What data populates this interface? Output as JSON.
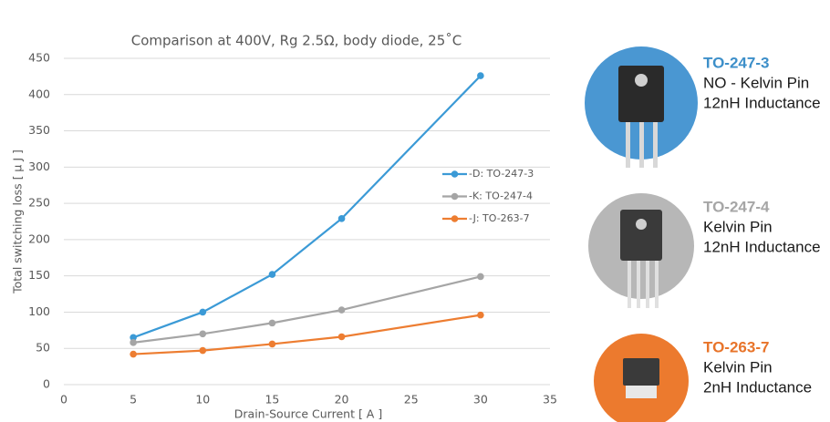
{
  "chart_data": {
    "type": "line",
    "title": "Comparison at 400V, Rg 2.5Ω, body diode, 25˚C",
    "x_label": "Drain-Source Current [ A ]",
    "y_label": "Total switching loss [ μ J ]",
    "x": [
      5,
      10,
      15,
      20,
      30
    ],
    "series": [
      {
        "name": "-D: TO-247-3",
        "color": "#3b9ad6",
        "values": [
          65,
          100,
          152,
          229,
          426
        ]
      },
      {
        "name": "-K: TO-247-4",
        "color": "#a5a5a5",
        "values": [
          58,
          70,
          85,
          103,
          149
        ]
      },
      {
        "name": "-J: TO-263-7",
        "color": "#ed7d31",
        "values": [
          42,
          47,
          56,
          66,
          96
        ]
      }
    ],
    "xlim": [
      0,
      35
    ],
    "xticks": [
      0,
      5,
      10,
      15,
      20,
      25,
      30,
      35
    ],
    "ylim": [
      0,
      450
    ],
    "yticks": [
      0,
      50,
      100,
      150,
      200,
      250,
      300,
      350,
      400,
      450
    ],
    "grid": true
  },
  "packages": [
    {
      "name": "TO-247-3",
      "color": "#3d8fc9",
      "lines": [
        "NO - Kelvin Pin",
        "12nH Inductance"
      ]
    },
    {
      "name": "TO-247-4",
      "color": "#a6a6a6",
      "lines": [
        "Kelvin Pin",
        "12nH Inductance"
      ]
    },
    {
      "name": "TO-263-7",
      "color": "#e8742a",
      "lines": [
        "Kelvin Pin",
        "2nH Inductance"
      ]
    }
  ]
}
